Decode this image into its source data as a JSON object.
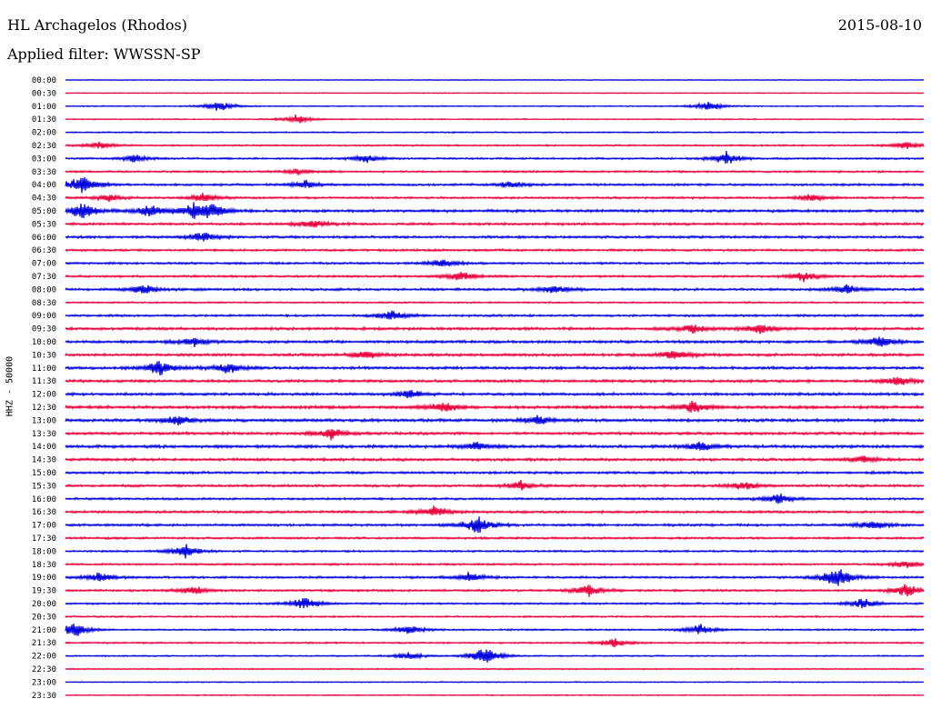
{
  "header": {
    "station": "HL Archagelos (Rhodos)",
    "date": "2015-08-10",
    "filter": "Applied filter: WWSSN-SP"
  },
  "chart_data": {
    "type": "line",
    "title": "HL Archagelos (Rhodos)",
    "ylabel": "HHZ - 50000",
    "xlabel": "",
    "row_labels": [
      "00:00",
      "00:30",
      "01:00",
      "01:30",
      "02:00",
      "02:30",
      "03:00",
      "03:30",
      "04:00",
      "04:30",
      "05:00",
      "05:30",
      "06:00",
      "06:30",
      "07:00",
      "07:30",
      "08:00",
      "08:30",
      "09:00",
      "09:30",
      "10:00",
      "10:30",
      "11:00",
      "11:30",
      "12:00",
      "12:30",
      "13:00",
      "13:30",
      "14:00",
      "14:30",
      "15:00",
      "15:30",
      "16:00",
      "16:30",
      "17:00",
      "17:30",
      "18:00",
      "18:30",
      "19:00",
      "19:30",
      "20:00",
      "20:30",
      "21:00",
      "21:30",
      "22:00",
      "22:30",
      "23:00",
      "23:30"
    ],
    "colors": {
      "even": "#0000dd",
      "odd": "#e8003c"
    },
    "noise_level": [
      0.3,
      0.3,
      0.4,
      0.4,
      0.5,
      0.6,
      0.7,
      0.7,
      0.8,
      0.8,
      1.0,
      0.9,
      0.9,
      0.8,
      0.8,
      0.8,
      0.9,
      0.6,
      0.8,
      1.0,
      1.0,
      1.0,
      1.0,
      1.0,
      1.0,
      1.1,
      1.1,
      1.0,
      1.1,
      1.0,
      0.9,
      0.9,
      0.8,
      0.9,
      0.9,
      0.8,
      0.7,
      0.7,
      0.8,
      0.8,
      0.7,
      0.6,
      0.6,
      0.6,
      0.5,
      0.5,
      0.4,
      0.4
    ],
    "events": [
      {
        "row": 2,
        "x": 0.18,
        "amp": 7
      },
      {
        "row": 2,
        "x": 0.75,
        "amp": 6
      },
      {
        "row": 3,
        "x": 0.27,
        "amp": 6
      },
      {
        "row": 5,
        "x": 0.04,
        "amp": 5
      },
      {
        "row": 5,
        "x": 0.98,
        "amp": 5
      },
      {
        "row": 6,
        "x": 0.08,
        "amp": 5
      },
      {
        "row": 6,
        "x": 0.77,
        "amp": 8
      },
      {
        "row": 6,
        "x": 0.35,
        "amp": 5
      },
      {
        "row": 7,
        "x": 0.27,
        "amp": 4
      },
      {
        "row": 8,
        "x": 0.02,
        "amp": 14
      },
      {
        "row": 8,
        "x": 0.28,
        "amp": 5
      },
      {
        "row": 8,
        "x": 0.52,
        "amp": 5
      },
      {
        "row": 9,
        "x": 0.05,
        "amp": 5
      },
      {
        "row": 9,
        "x": 0.16,
        "amp": 6
      },
      {
        "row": 9,
        "x": 0.87,
        "amp": 5
      },
      {
        "row": 10,
        "x": 0.02,
        "amp": 12
      },
      {
        "row": 10,
        "x": 0.1,
        "amp": 8
      },
      {
        "row": 10,
        "x": 0.15,
        "amp": 10
      },
      {
        "row": 10,
        "x": 0.17,
        "amp": 9
      },
      {
        "row": 11,
        "x": 0.29,
        "amp": 6
      },
      {
        "row": 12,
        "x": 0.16,
        "amp": 7
      },
      {
        "row": 14,
        "x": 0.44,
        "amp": 6
      },
      {
        "row": 15,
        "x": 0.46,
        "amp": 7
      },
      {
        "row": 15,
        "x": 0.86,
        "amp": 6
      },
      {
        "row": 16,
        "x": 0.09,
        "amp": 7
      },
      {
        "row": 16,
        "x": 0.57,
        "amp": 6
      },
      {
        "row": 16,
        "x": 0.91,
        "amp": 6
      },
      {
        "row": 18,
        "x": 0.38,
        "amp": 7
      },
      {
        "row": 19,
        "x": 0.73,
        "amp": 7
      },
      {
        "row": 19,
        "x": 0.81,
        "amp": 8
      },
      {
        "row": 20,
        "x": 0.15,
        "amp": 6
      },
      {
        "row": 20,
        "x": 0.95,
        "amp": 8
      },
      {
        "row": 21,
        "x": 0.35,
        "amp": 6
      },
      {
        "row": 21,
        "x": 0.71,
        "amp": 7
      },
      {
        "row": 22,
        "x": 0.11,
        "amp": 10
      },
      {
        "row": 22,
        "x": 0.19,
        "amp": 8
      },
      {
        "row": 23,
        "x": 0.97,
        "amp": 7
      },
      {
        "row": 24,
        "x": 0.4,
        "amp": 6
      },
      {
        "row": 25,
        "x": 0.44,
        "amp": 8
      },
      {
        "row": 25,
        "x": 0.73,
        "amp": 8
      },
      {
        "row": 26,
        "x": 0.13,
        "amp": 7
      },
      {
        "row": 26,
        "x": 0.55,
        "amp": 7
      },
      {
        "row": 27,
        "x": 0.31,
        "amp": 8
      },
      {
        "row": 28,
        "x": 0.48,
        "amp": 6
      },
      {
        "row": 28,
        "x": 0.74,
        "amp": 7
      },
      {
        "row": 29,
        "x": 0.93,
        "amp": 6
      },
      {
        "row": 31,
        "x": 0.53,
        "amp": 6
      },
      {
        "row": 31,
        "x": 0.79,
        "amp": 6
      },
      {
        "row": 32,
        "x": 0.83,
        "amp": 7
      },
      {
        "row": 33,
        "x": 0.43,
        "amp": 8
      },
      {
        "row": 34,
        "x": 0.48,
        "amp": 12
      },
      {
        "row": 34,
        "x": 0.94,
        "amp": 6
      },
      {
        "row": 36,
        "x": 0.14,
        "amp": 9
      },
      {
        "row": 37,
        "x": 0.98,
        "amp": 5
      },
      {
        "row": 38,
        "x": 0.04,
        "amp": 7
      },
      {
        "row": 38,
        "x": 0.47,
        "amp": 6
      },
      {
        "row": 38,
        "x": 0.9,
        "amp": 16
      },
      {
        "row": 39,
        "x": 0.15,
        "amp": 6
      },
      {
        "row": 39,
        "x": 0.61,
        "amp": 8
      },
      {
        "row": 39,
        "x": 0.98,
        "amp": 9
      },
      {
        "row": 40,
        "x": 0.28,
        "amp": 9
      },
      {
        "row": 40,
        "x": 0.93,
        "amp": 7
      },
      {
        "row": 42,
        "x": 0.01,
        "amp": 10
      },
      {
        "row": 42,
        "x": 0.4,
        "amp": 6
      },
      {
        "row": 42,
        "x": 0.74,
        "amp": 7
      },
      {
        "row": 43,
        "x": 0.64,
        "amp": 6
      },
      {
        "row": 44,
        "x": 0.4,
        "amp": 5
      },
      {
        "row": 44,
        "x": 0.49,
        "amp": 12
      }
    ]
  }
}
